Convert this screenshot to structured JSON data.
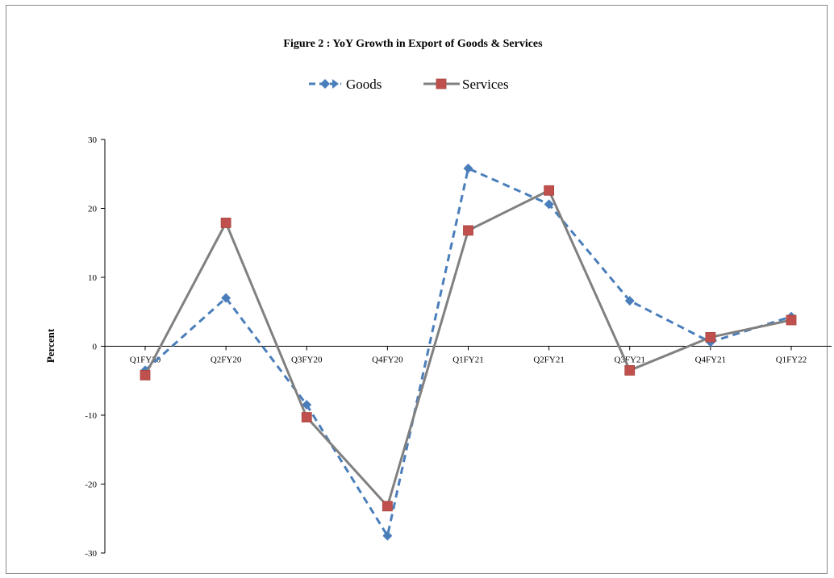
{
  "chart_data": {
    "type": "line",
    "title": "Figure 2 : YoY Growth in Export  of Goods & Services",
    "xlabel": "",
    "ylabel": "Percent",
    "ylim": [
      -30,
      30
    ],
    "yticks": [
      30,
      20,
      10,
      0,
      -10,
      -20,
      -30
    ],
    "categories": [
      "Q1FY20",
      "Q2FY20",
      "Q3FY20",
      "Q4FY20",
      "Q1FY21",
      "Q2FY21",
      "Q3FY21",
      "Q4FY21",
      "Q1FY22"
    ],
    "legend_position": "top-center",
    "grid": false,
    "series": [
      {
        "name": "Goods",
        "color": "#4a7ebb",
        "marker": "diamond",
        "line_style": "dashed",
        "values": [
          -3.5,
          7.0,
          -8.5,
          -27.5,
          25.8,
          20.6,
          6.6,
          0.6,
          4.3
        ]
      },
      {
        "name": "Services",
        "color": "#808080",
        "marker_color": "#c0504d",
        "marker": "square",
        "line_style": "solid",
        "values": [
          -4.2,
          17.9,
          -10.3,
          -23.2,
          16.8,
          22.6,
          -3.5,
          1.3,
          3.8
        ]
      }
    ]
  }
}
